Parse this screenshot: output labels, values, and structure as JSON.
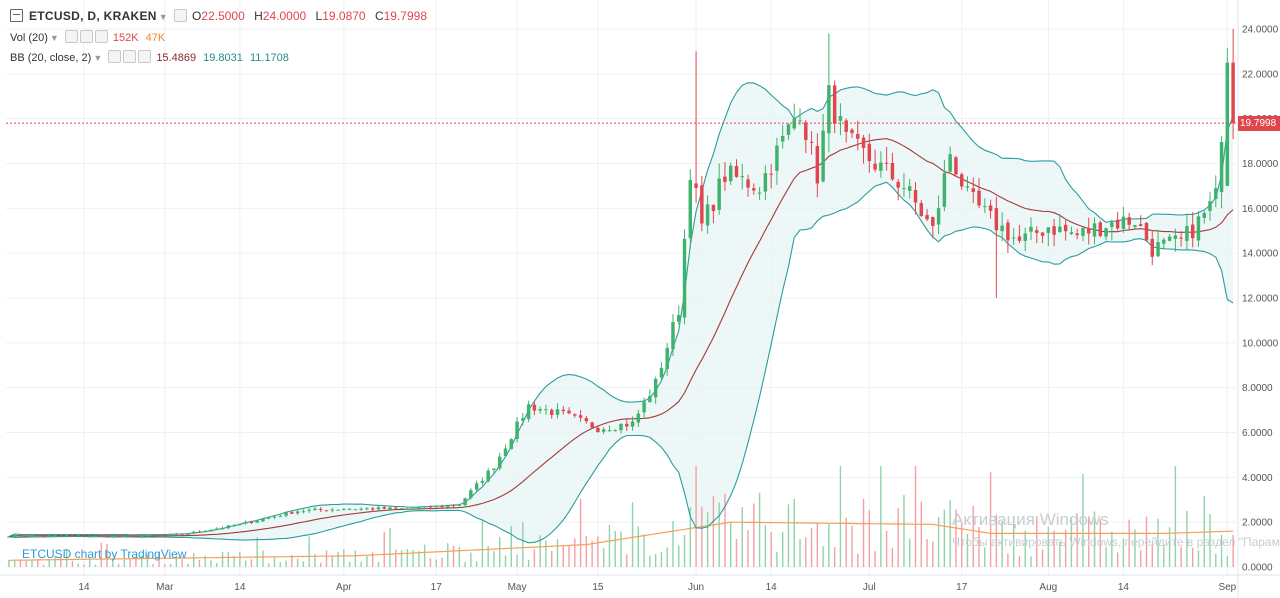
{
  "header": {
    "symbol": "ETCUSD, D, KRAKEN",
    "open_label": "O",
    "open": "22.5000",
    "high_label": "H",
    "high": "24.0000",
    "low_label": "L",
    "low": "19.0870",
    "close_label": "C",
    "close": "19.7998"
  },
  "vol_legend": {
    "label": "Vol (20)",
    "value1": "152K",
    "value2": "47K"
  },
  "bb_legend": {
    "label": "BB (20, close, 2)",
    "basis": "15.4869",
    "upper": "19.8031",
    "lower": "11.1708"
  },
  "price_tag": "19.7998",
  "brand": "ETCUSD chart by TradingView",
  "watermark": {
    "title": "Активация Windows",
    "subtitle": "Чтобы активировать Windows, перейдите в раздел \"Параметры\"."
  },
  "colors": {
    "up": "#3fb36c",
    "down": "#e0464e",
    "band": "#2a9d9d",
    "basis": "#a33a3a",
    "vol_ma": "#f5a05a"
  },
  "chart_data": {
    "type": "candlestick",
    "y_axis": {
      "min": 0,
      "max": 24,
      "ticks": [
        "24.0000",
        "22.0000",
        "20.0000",
        "18.0000",
        "16.0000",
        "14.0000",
        "12.0000",
        "10.0000",
        "8.0000",
        "6.0000",
        "4.0000",
        "2.0000",
        "0.0000"
      ]
    },
    "x_axis": {
      "ticks": [
        {
          "label": "14",
          "day": 13
        },
        {
          "label": "Mar",
          "day": 27
        },
        {
          "label": "14",
          "day": 40
        },
        {
          "label": "Apr",
          "day": 58
        },
        {
          "label": "17",
          "day": 74
        },
        {
          "label": "May",
          "day": 88
        },
        {
          "label": "15",
          "day": 102
        },
        {
          "label": "Jun",
          "day": 119
        },
        {
          "label": "14",
          "day": 132
        },
        {
          "label": "Jul",
          "day": 149
        },
        {
          "label": "17",
          "day": 165
        },
        {
          "label": "Aug",
          "day": 180
        },
        {
          "label": "14",
          "day": 193
        },
        {
          "label": "Sep",
          "day": 211
        }
      ]
    },
    "close_anchors": [
      [
        0,
        1.4
      ],
      [
        10,
        1.4
      ],
      [
        20,
        1.35
      ],
      [
        30,
        1.45
      ],
      [
        40,
        1.9
      ],
      [
        50,
        2.5
      ],
      [
        58,
        2.6
      ],
      [
        70,
        2.6
      ],
      [
        78,
        2.8
      ],
      [
        84,
        4.5
      ],
      [
        90,
        7.2
      ],
      [
        96,
        6.8
      ],
      [
        102,
        6.2
      ],
      [
        108,
        6.4
      ],
      [
        112,
        8.2
      ],
      [
        116,
        11.5
      ],
      [
        118,
        17.8
      ],
      [
        120,
        15.2
      ],
      [
        124,
        17.5
      ],
      [
        130,
        17.0
      ],
      [
        134,
        19.0
      ],
      [
        137,
        20.5
      ],
      [
        140,
        17.5
      ],
      [
        142,
        21.0
      ],
      [
        145,
        19.0
      ],
      [
        150,
        18.0
      ],
      [
        155,
        17.0
      ],
      [
        160,
        15.0
      ],
      [
        163,
        18.5
      ],
      [
        166,
        16.5
      ],
      [
        170,
        15.5
      ],
      [
        175,
        14.5
      ],
      [
        180,
        15.2
      ],
      [
        185,
        14.8
      ],
      [
        190,
        15.3
      ],
      [
        195,
        15.5
      ],
      [
        198,
        14.2
      ],
      [
        203,
        14.5
      ],
      [
        207,
        15.7
      ],
      [
        209,
        16.5
      ],
      [
        211,
        22.5
      ],
      [
        212,
        19.8
      ]
    ],
    "volume_scale_max": 4.5,
    "volume_ma_anchors": [
      [
        0,
        0.3
      ],
      [
        60,
        0.5
      ],
      [
        100,
        1.0
      ],
      [
        115,
        1.6
      ],
      [
        125,
        2.0
      ],
      [
        160,
        1.9
      ],
      [
        170,
        1.5
      ],
      [
        200,
        1.5
      ],
      [
        212,
        1.6
      ]
    ]
  }
}
